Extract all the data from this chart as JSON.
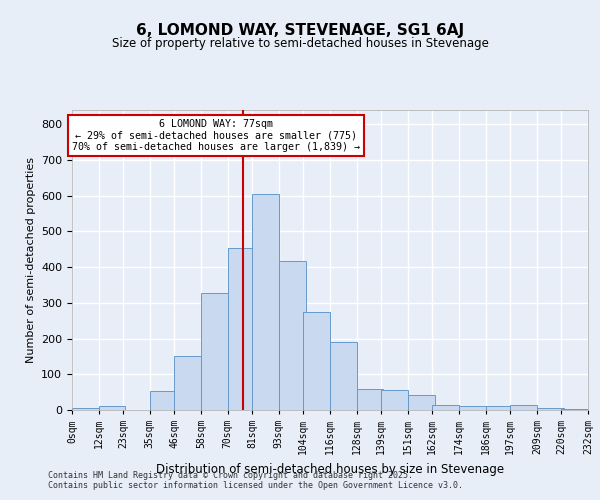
{
  "title": "6, LOMOND WAY, STEVENAGE, SG1 6AJ",
  "subtitle": "Size of property relative to semi-detached houses in Stevenage",
  "xlabel": "Distribution of semi-detached houses by size in Stevenage",
  "ylabel": "Number of semi-detached properties",
  "footnote1": "Contains HM Land Registry data © Crown copyright and database right 2025.",
  "footnote2": "Contains public sector information licensed under the Open Government Licence v3.0.",
  "annotation_title": "6 LOMOND WAY: 77sqm",
  "annotation_line1": "← 29% of semi-detached houses are smaller (775)",
  "annotation_line2": "70% of semi-detached houses are larger (1,839) →",
  "bar_left_edges": [
    0,
    12,
    23,
    35,
    46,
    58,
    70,
    81,
    93,
    104,
    116,
    128,
    139,
    151,
    162,
    174,
    186,
    197,
    209,
    220
  ],
  "bar_heights": [
    5,
    10,
    0,
    53,
    150,
    328,
    455,
    605,
    418,
    275,
    190,
    60,
    55,
    42,
    15,
    10,
    10,
    15,
    5,
    2
  ],
  "bin_width": 12,
  "tick_labels": [
    "0sqm",
    "12sqm",
    "23sqm",
    "35sqm",
    "46sqm",
    "58sqm",
    "70sqm",
    "81sqm",
    "93sqm",
    "104sqm",
    "116sqm",
    "128sqm",
    "139sqm",
    "151sqm",
    "162sqm",
    "174sqm",
    "186sqm",
    "197sqm",
    "209sqm",
    "220sqm",
    "232sqm"
  ],
  "bar_color": "#c9d9f0",
  "bar_edge_color": "#6699cc",
  "vline_color": "#cc0000",
  "vline_x": 77,
  "annotation_box_color": "#ffffff",
  "annotation_box_edge": "#cc0000",
  "bg_color": "#e8eef8",
  "grid_color": "#ffffff",
  "ylim": [
    0,
    840
  ],
  "yticks": [
    0,
    100,
    200,
    300,
    400,
    500,
    600,
    700,
    800
  ]
}
